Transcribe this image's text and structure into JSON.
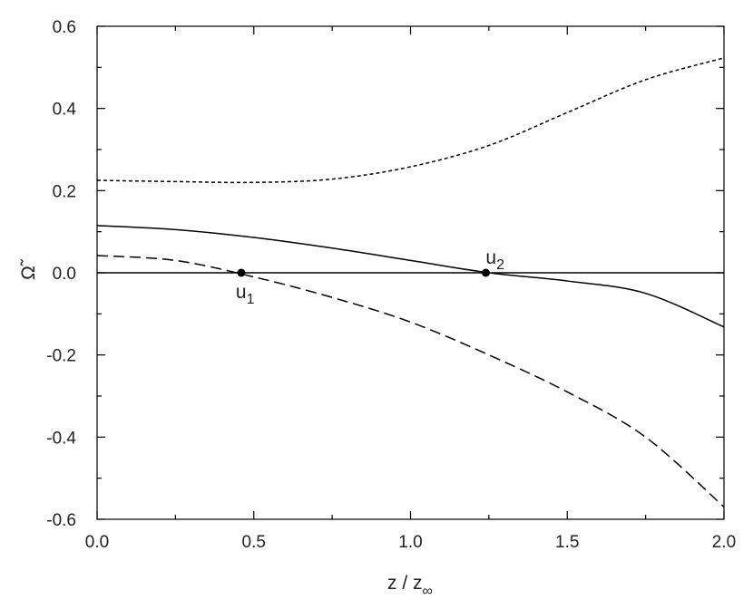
{
  "chart_data": {
    "type": "line",
    "x_label": "z / z",
    "x_label_subscript": "∞",
    "y_label": "Ω̃",
    "x": [
      0,
      0.25,
      0.5,
      0.75,
      1.0,
      1.25,
      1.5,
      1.75,
      2.0
    ],
    "series": [
      {
        "color": "#000000",
        "dash": "4,3",
        "values": [
          0.225,
          0.222,
          0.22,
          0.228,
          0.258,
          0.31,
          0.39,
          0.47,
          0.523
        ]
      },
      {
        "color": "#000000",
        "dash": "none",
        "values": [
          0.115,
          0.105,
          0.086,
          0.06,
          0.03,
          0.0,
          -0.02,
          -0.05,
          -0.132
        ]
      },
      {
        "color": "#000000",
        "dash": "12,6",
        "values": [
          0.042,
          0.03,
          -0.01,
          -0.06,
          -0.12,
          -0.2,
          -0.29,
          -0.4,
          -0.57
        ]
      }
    ],
    "points": [
      {
        "x": 0.46,
        "y": 0,
        "label": "u",
        "subscript": "1"
      },
      {
        "x": 1.24,
        "y": 0,
        "label": "u",
        "subscript": "2"
      }
    ],
    "hline": 0,
    "xlim": [
      0,
      2
    ],
    "ylim": [
      -0.6,
      0.6
    ],
    "xticks": [
      {
        "value": 0,
        "label": "0.0"
      },
      0.5,
      {
        "value": 1,
        "label": "1.0"
      },
      1.5,
      {
        "value": 2,
        "label": "2.0"
      }
    ],
    "yticks": [
      -0.6,
      -0.4,
      -0.2,
      {
        "value": 0,
        "label": "0.0"
      },
      0.2,
      0.4,
      0.6
    ]
  }
}
